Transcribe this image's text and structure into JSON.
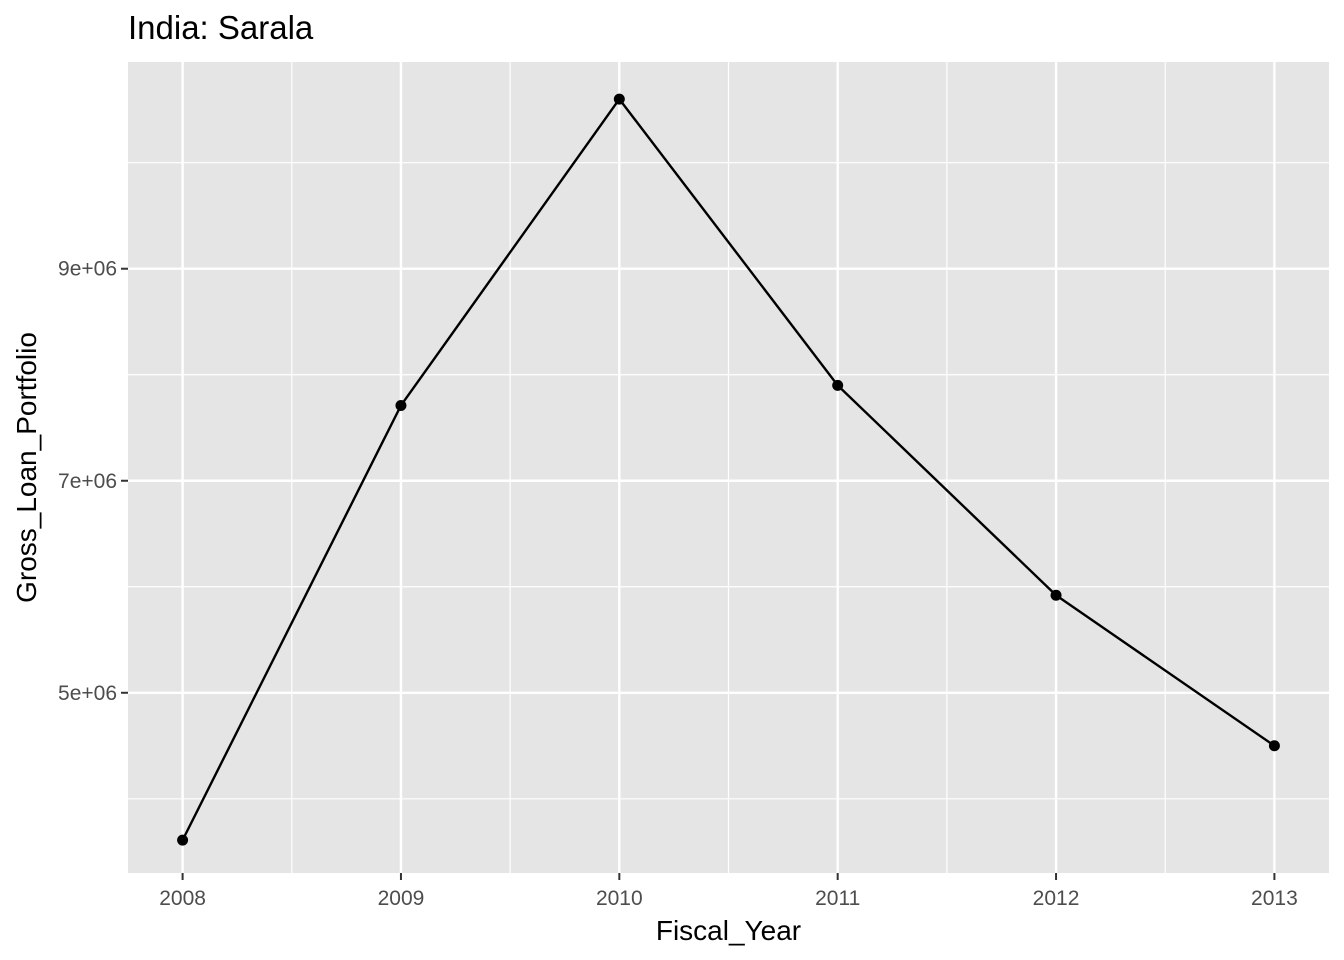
{
  "chart_data": {
    "type": "line",
    "title": "India:  Sarala",
    "xlabel": "Fiscal_Year",
    "ylabel": "Gross_Loan_Portfolio",
    "x": [
      2008,
      2009,
      2010,
      2011,
      2012,
      2013
    ],
    "x_tick_labels": [
      "2008",
      "2009",
      "2010",
      "2011",
      "2012",
      "2013"
    ],
    "y_ticks": [
      5000000,
      7000000,
      9000000
    ],
    "y_tick_labels": [
      "5e+06",
      "7e+06",
      "9e+06"
    ],
    "series": [
      {
        "values": [
          3610000,
          7710000,
          10600000,
          7900000,
          5920000,
          4500000
        ]
      }
    ],
    "xlim": [
      2007.75,
      2013.25
    ],
    "ylim": [
      3300000,
      10950000
    ],
    "grid": true,
    "legend": "none",
    "colors": {
      "panel_background": "#e5e5e5",
      "grid": "#ffffff",
      "line": "#000000",
      "points": "#000000"
    }
  }
}
